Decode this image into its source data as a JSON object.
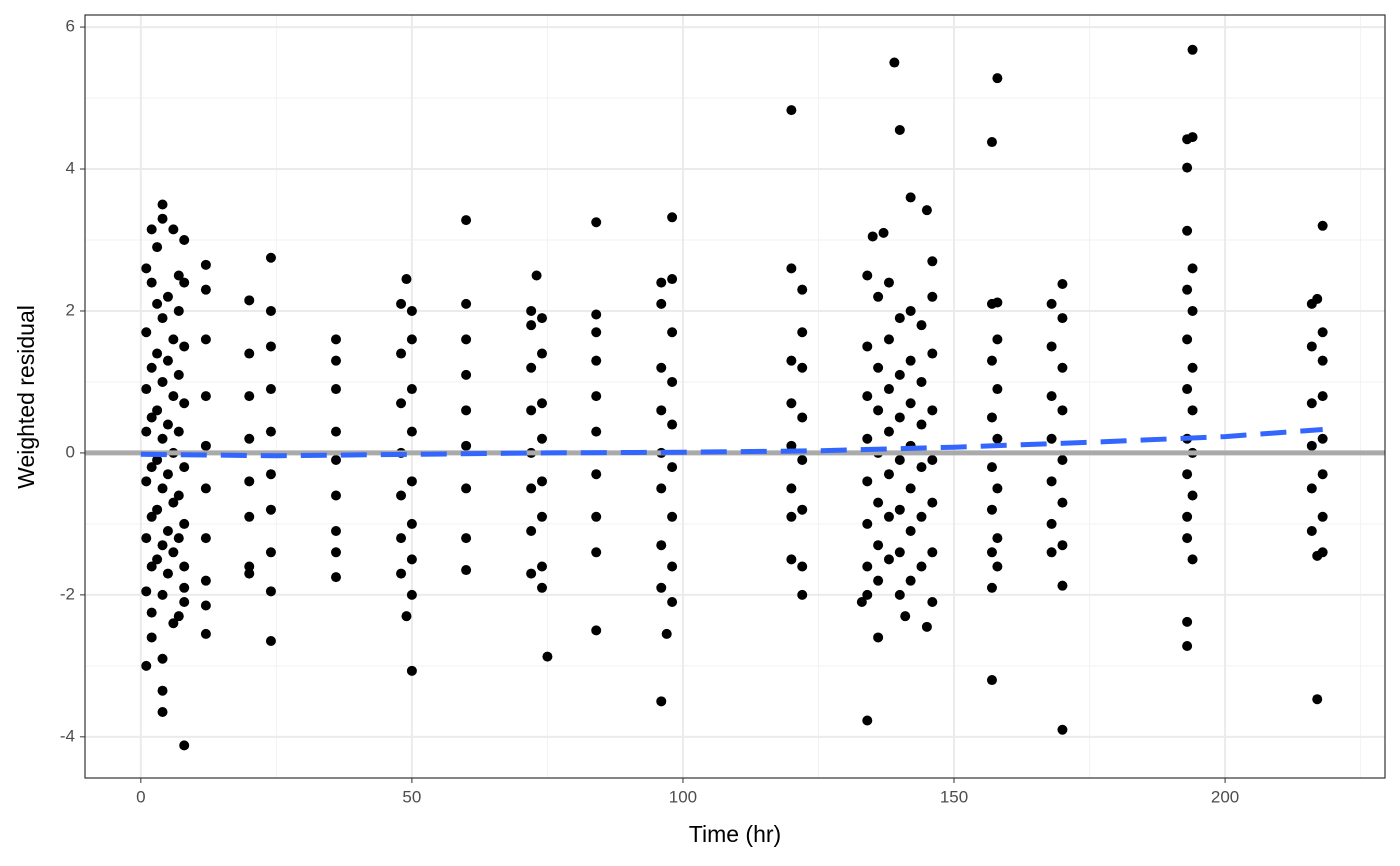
{
  "chart_data": {
    "type": "scatter",
    "x_label": "Time (hr)",
    "y_label": "Weighted residual",
    "xlim": [
      -10.3,
      229.5
    ],
    "ylim": [
      -4.58,
      6.17
    ],
    "xticks": [
      0,
      50,
      100,
      150,
      200
    ],
    "yticks": [
      -4,
      -2,
      0,
      2,
      4,
      6
    ],
    "xminor": [
      25,
      75,
      125,
      175,
      225
    ],
    "yminor": [
      -3,
      -1,
      1,
      3,
      5
    ],
    "grid": true,
    "point_color": "#000000",
    "x": [
      1,
      1,
      1,
      1,
      1,
      1,
      1,
      2,
      2,
      2,
      2,
      2,
      2,
      2,
      3,
      3,
      3,
      3,
      3,
      3,
      4,
      4,
      4,
      4,
      4,
      4,
      5,
      5,
      5,
      5,
      5,
      5,
      6,
      6,
      6,
      6,
      6,
      6,
      7,
      7,
      7,
      7,
      7,
      8,
      8,
      8,
      8,
      8,
      8,
      8,
      12,
      12,
      12,
      12,
      12,
      12,
      12,
      20,
      20,
      20,
      20,
      20,
      20,
      24,
      24,
      24,
      24,
      24,
      24,
      24,
      36,
      36,
      36,
      36,
      36,
      36,
      36,
      48,
      48,
      48,
      48,
      48,
      48,
      48,
      50,
      50,
      50,
      50,
      50,
      50,
      50,
      60,
      60,
      60,
      60,
      60,
      60,
      72,
      72,
      72,
      72,
      72,
      72,
      72,
      74,
      74,
      74,
      74,
      74,
      74,
      74,
      84,
      84,
      84,
      84,
      84,
      84,
      84,
      96,
      96,
      96,
      96,
      96,
      96,
      96,
      98,
      98,
      98,
      98,
      98,
      98,
      120,
      120,
      120,
      120,
      120,
      120,
      122,
      122,
      122,
      122,
      122,
      122,
      134,
      134,
      134,
      134,
      134,
      134,
      134,
      134,
      136,
      136,
      136,
      136,
      136,
      136,
      136,
      138,
      138,
      138,
      138,
      138,
      138,
      138,
      140,
      140,
      140,
      140,
      140,
      140,
      140,
      142,
      142,
      142,
      142,
      142,
      142,
      142,
      144,
      144,
      144,
      144,
      144,
      144,
      146,
      146,
      146,
      146,
      146,
      146,
      146,
      157,
      157,
      157,
      157,
      157,
      157,
      157,
      158,
      158,
      158,
      158,
      158,
      158,
      168,
      168,
      168,
      168,
      168,
      168,
      168,
      170,
      170,
      170,
      170,
      170,
      170,
      193,
      193,
      193,
      193,
      193,
      193,
      193,
      194,
      194,
      194,
      194,
      194,
      194,
      216,
      216,
      216,
      216,
      216,
      216,
      218,
      218,
      218,
      218,
      218,
      218,
      218,
      1,
      2,
      2,
      3,
      4,
      4,
      4,
      4,
      4,
      6,
      7,
      7,
      8,
      8,
      8,
      12,
      12,
      12,
      20,
      20,
      24,
      24,
      24,
      36,
      36,
      49,
      49,
      50,
      50,
      60,
      60,
      60,
      72,
      73,
      74,
      75,
      84,
      84,
      84,
      96,
      96,
      97,
      98,
      98,
      98,
      120,
      120,
      122,
      122,
      133,
      134,
      135,
      136,
      137,
      139,
      140,
      142,
      141,
      145,
      145,
      146,
      157,
      157,
      158,
      158,
      170,
      170,
      170,
      193,
      193,
      193,
      193,
      194,
      194,
      194,
      193,
      217,
      218,
      217,
      217
    ],
    "values": [
      2.6,
      1.7,
      0.9,
      0.3,
      -0.4,
      -1.2,
      -1.95,
      2.4,
      1.2,
      0.5,
      -0.2,
      -0.9,
      -1.6,
      -2.25,
      2.1,
      1.4,
      0.6,
      -0.1,
      -0.8,
      -1.5,
      1.9,
      1.0,
      0.2,
      -0.5,
      -1.3,
      -2.0,
      2.2,
      1.3,
      0.4,
      -0.3,
      -1.1,
      -1.7,
      1.6,
      0.8,
      0.0,
      -0.7,
      -1.4,
      -2.4,
      2.5,
      1.1,
      0.3,
      -0.6,
      -1.2,
      2.4,
      1.5,
      0.7,
      -0.2,
      -1.0,
      -1.6,
      -2.1,
      2.3,
      1.6,
      0.8,
      0.1,
      -0.5,
      -1.2,
      -1.8,
      1.4,
      0.8,
      0.2,
      -0.4,
      -0.9,
      -1.7,
      2.0,
      1.5,
      0.9,
      0.3,
      -0.3,
      -0.8,
      -1.4,
      1.3,
      0.9,
      0.3,
      -0.1,
      -0.6,
      -1.1,
      -1.4,
      2.1,
      1.4,
      0.7,
      0.0,
      -0.6,
      -1.2,
      -1.7,
      1.6,
      0.9,
      0.3,
      -0.4,
      -1.0,
      -1.5,
      -2.0,
      1.6,
      1.1,
      0.6,
      0.1,
      -0.5,
      -1.2,
      1.8,
      1.2,
      0.6,
      0.0,
      -0.5,
      -1.1,
      -1.7,
      1.9,
      1.4,
      0.7,
      0.2,
      -0.4,
      -0.9,
      -1.6,
      1.7,
      1.3,
      0.8,
      0.3,
      -0.3,
      -0.9,
      -1.4,
      2.1,
      1.2,
      0.6,
      0.0,
      -0.5,
      -1.3,
      -1.9,
      1.7,
      1.0,
      0.4,
      -0.2,
      -0.9,
      -1.6,
      1.3,
      0.7,
      0.1,
      -0.5,
      -0.9,
      -1.5,
      1.7,
      1.2,
      0.5,
      -0.1,
      -0.8,
      -1.6,
      2.5,
      1.5,
      0.8,
      0.2,
      -0.4,
      -1.0,
      -1.6,
      -2.0,
      2.2,
      1.2,
      0.6,
      0.0,
      -0.7,
      -1.3,
      -1.8,
      2.4,
      1.6,
      0.9,
      0.3,
      -0.3,
      -0.9,
      -1.5,
      1.9,
      1.1,
      0.5,
      -0.1,
      -0.8,
      -1.4,
      -2.0,
      2.0,
      1.3,
      0.7,
      0.1,
      -0.5,
      -1.1,
      -1.8,
      1.8,
      1.0,
      0.4,
      -0.2,
      -0.9,
      -1.6,
      2.2,
      1.4,
      0.6,
      -0.1,
      -0.7,
      -1.4,
      -2.1,
      2.1,
      1.3,
      0.5,
      -0.2,
      -0.8,
      -1.4,
      -1.9,
      1.6,
      0.9,
      0.2,
      -0.5,
      -1.2,
      -1.6,
      2.1,
      1.5,
      0.8,
      0.2,
      -0.4,
      -1.0,
      -1.4,
      1.9,
      1.2,
      0.6,
      -0.1,
      -0.7,
      -1.3,
      2.3,
      1.6,
      0.9,
      0.2,
      -0.3,
      -0.9,
      -1.2,
      2.0,
      1.2,
      0.6,
      0.0,
      -0.6,
      -1.5,
      2.1,
      1.5,
      0.7,
      0.1,
      -0.5,
      -1.1,
      1.7,
      1.3,
      0.8,
      0.2,
      -0.3,
      -0.9,
      -1.4,
      -3.0,
      -2.6,
      3.15,
      2.9,
      -2.9,
      -3.35,
      -3.65,
      3.5,
      3.3,
      3.15,
      2.0,
      -2.3,
      -4.12,
      3.0,
      -1.9,
      2.65,
      -2.55,
      -2.15,
      2.15,
      -1.6,
      2.75,
      -2.65,
      -1.95,
      1.6,
      -1.75,
      2.45,
      -2.3,
      -3.07,
      2.0,
      3.28,
      2.1,
      -1.65,
      2.0,
      2.5,
      -1.9,
      -2.87,
      3.25,
      -2.5,
      1.95,
      -3.5,
      2.4,
      -2.55,
      3.32,
      2.45,
      -2.1,
      4.83,
      2.6,
      2.3,
      -2.0,
      -2.1,
      -3.77,
      3.05,
      -2.6,
      3.1,
      5.5,
      4.55,
      3.6,
      -2.3,
      3.42,
      -2.45,
      2.7,
      4.38,
      -3.2,
      5.28,
      2.12,
      2.38,
      -1.87,
      -3.9,
      4.02,
      -2.38,
      -2.72,
      4.42,
      5.68,
      4.45,
      2.6,
      3.13,
      -3.47,
      3.2,
      2.17,
      -1.45
    ],
    "hline": 0,
    "hline_color": "#aaaaaa",
    "trend": {
      "color": "#3366ff",
      "x": [
        0,
        25,
        50,
        75,
        100,
        125,
        150,
        175,
        200,
        218
      ],
      "values": [
        -0.02,
        -0.04,
        -0.02,
        0,
        0.01,
        0.03,
        0.08,
        0.15,
        0.23,
        0.33
      ]
    }
  }
}
